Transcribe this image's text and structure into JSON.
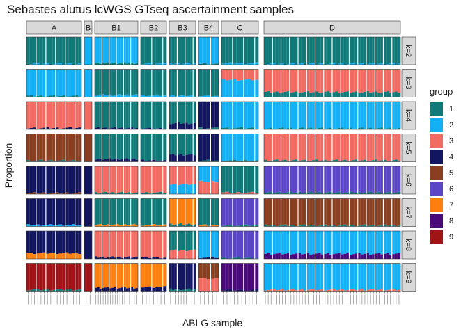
{
  "chart_data": {
    "type": "bar",
    "subtype": "faceted-stacked-proportion-bars",
    "title": "Sebastes alutus lcWGS GTseq ascertainment samples",
    "xlabel": "ABLG sample",
    "ylabel": "Proportion",
    "ylim": [
      0,
      1
    ],
    "legend": {
      "title": "group",
      "position": "right",
      "entries": [
        {
          "label": "1",
          "color": "#117a78"
        },
        {
          "label": "2",
          "color": "#13b0f5"
        },
        {
          "label": "3",
          "color": "#f26b63"
        },
        {
          "label": "4",
          "color": "#121560"
        },
        {
          "label": "5",
          "color": "#8a3f20"
        },
        {
          "label": "6",
          "color": "#5a46c6"
        },
        {
          "label": "7",
          "color": "#ff7f0e"
        },
        {
          "label": "8",
          "color": "#4a0a7a"
        },
        {
          "label": "9",
          "color": "#a01418"
        }
      ]
    },
    "columns": [
      "A",
      "B",
      "B1",
      "B2",
      "B3",
      "B4",
      "C",
      "D"
    ],
    "samples_per_column": [
      17,
      2,
      18,
      7,
      10,
      5,
      10,
      48
    ],
    "rows": [
      "k=2",
      "k=3",
      "k=4",
      "k=5",
      "k=6",
      "k=7",
      "k=8",
      "k=9"
    ],
    "dominant_group": {
      "k=2": [
        "1",
        "2",
        "2",
        "1",
        "1",
        "2",
        "1",
        "1"
      ],
      "k=3": [
        "2",
        "2",
        "1",
        "1",
        "1",
        "1",
        "3",
        "3"
      ],
      "k=4": [
        "3",
        "3",
        "1",
        "1",
        "1",
        "4",
        "2",
        "2"
      ],
      "k=5": [
        "5",
        "5",
        "1",
        "1",
        "1",
        "4",
        "2",
        "3"
      ],
      "k=6": [
        "4",
        "4",
        "3",
        "3",
        "3",
        "2",
        "1",
        "6"
      ],
      "k=7": [
        "4",
        "4",
        "1",
        "1",
        "7",
        "1",
        "6",
        "5"
      ],
      "k=8": [
        "4",
        "4",
        "3",
        "3",
        "1",
        "2",
        "6",
        "2"
      ],
      "k=9": [
        "9",
        "9",
        "7",
        "7",
        "4",
        "5",
        "8",
        "2"
      ]
    },
    "secondary_group": {
      "k=2": [
        "2",
        "1",
        "1",
        "2",
        "2",
        "1",
        "2",
        "2"
      ],
      "k=3": [
        "1",
        "1",
        "2",
        "2",
        "2",
        "2",
        "2",
        "1"
      ],
      "k=4": [
        "4",
        "4",
        "4",
        "4",
        "4",
        "1",
        "1",
        "1"
      ],
      "k=5": [
        "1",
        "1",
        "4",
        "4",
        "4",
        "1",
        "1",
        "1"
      ],
      "k=6": [
        "5",
        "5",
        "1",
        "1",
        "2",
        "3",
        "3",
        "1"
      ],
      "k=7": [
        "2",
        "2",
        "7",
        "7",
        "1",
        "7",
        "1",
        "1"
      ],
      "k=8": [
        "7",
        "7",
        "4",
        "4",
        "3",
        "4",
        "1",
        "8"
      ],
      "k=9": [
        "1",
        "1",
        "4",
        "4",
        "1",
        "3",
        "4",
        "3"
      ]
    },
    "secondary_fraction": {
      "k=2": [
        0.03,
        0.0,
        0.06,
        0.04,
        0.04,
        0.02,
        0.05,
        0.03
      ],
      "k=3": [
        0.04,
        0.0,
        0.08,
        0.06,
        0.05,
        0.05,
        0.62,
        0.18
      ],
      "k=4": [
        0.05,
        0.0,
        0.05,
        0.03,
        0.22,
        0.05,
        0.05,
        0.04
      ],
      "k=5": [
        0.04,
        0.0,
        0.1,
        0.05,
        0.25,
        0.04,
        0.04,
        0.05
      ],
      "k=6": [
        0.04,
        0.0,
        0.05,
        0.05,
        0.35,
        0.45,
        0.05,
        0.06
      ],
      "k=7": [
        0.05,
        0.0,
        0.06,
        0.05,
        0.08,
        0.05,
        0.04,
        0.04
      ],
      "k=8": [
        0.2,
        0.0,
        0.06,
        0.05,
        0.3,
        0.05,
        0.03,
        0.18
      ],
      "k=9": [
        0.05,
        0.0,
        0.12,
        0.15,
        0.06,
        0.45,
        0.04,
        0.05
      ]
    }
  }
}
